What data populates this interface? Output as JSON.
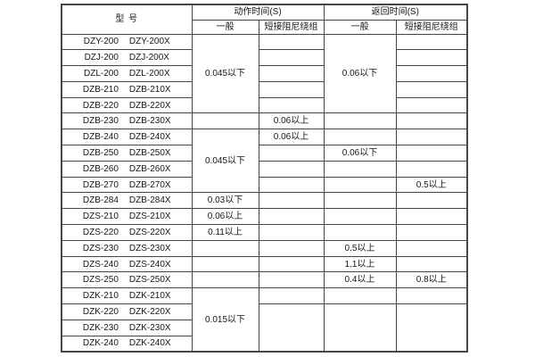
{
  "colors": {
    "background": "#ffffff",
    "border": "#454545",
    "text": "#161616"
  },
  "header": {
    "model": "型  号",
    "action": "动作时间(S)",
    "return": "返回时间(S)",
    "action_general": "一般",
    "action_damped": "短接阻尼绕组",
    "return_general": "一般",
    "return_damped": "短接阻尼绕组"
  },
  "table": {
    "columns": [
      "型号",
      "动作时间(S) 一般",
      "动作时间(S) 短接阻尼绕组",
      "返回时间(S) 一般",
      "返回时间(S) 短接阻尼绕组"
    ],
    "rows": [
      {
        "models": [
          "DZY-200",
          "DZY-200X"
        ],
        "cells": [
          {
            "text": "0.045以下",
            "rowspan": 5
          },
          {
            "text": ""
          },
          {
            "text": "0.06以下",
            "rowspan": 5
          },
          {
            "text": ""
          }
        ]
      },
      {
        "models": [
          "DZJ-200",
          "DZJ-200X"
        ],
        "cells": [
          null,
          {
            "text": ""
          },
          null,
          {
            "text": ""
          }
        ]
      },
      {
        "models": [
          "DZL-200",
          "DZL-200X"
        ],
        "cells": [
          null,
          {
            "text": ""
          },
          null,
          {
            "text": ""
          }
        ]
      },
      {
        "models": [
          "DZB-210",
          "DZB-210X"
        ],
        "cells": [
          null,
          {
            "text": ""
          },
          null,
          {
            "text": ""
          }
        ]
      },
      {
        "models": [
          "DZB-220",
          "DZB-220X"
        ],
        "cells": [
          null,
          {
            "text": ""
          },
          null,
          {
            "text": ""
          }
        ]
      },
      {
        "models": [
          "DZB-230",
          "DZB-230X"
        ],
        "cells": [
          {
            "text": ""
          },
          {
            "text": "0.06以上"
          },
          {
            "text": ""
          },
          {
            "text": ""
          }
        ]
      },
      {
        "models": [
          "DZB-240",
          "DZB-240X"
        ],
        "cells": [
          {
            "text": "0.045以下",
            "rowspan": 4
          },
          {
            "text": "0.06以上"
          },
          {
            "text": ""
          },
          {
            "text": ""
          }
        ]
      },
      {
        "models": [
          "DZB-250",
          "DZB-250X"
        ],
        "cells": [
          null,
          {
            "text": ""
          },
          {
            "text": "0.06以下"
          },
          {
            "text": ""
          }
        ]
      },
      {
        "models": [
          "DZB-260",
          "DZB-260X"
        ],
        "cells": [
          null,
          {
            "text": ""
          },
          {
            "text": ""
          },
          {
            "text": ""
          }
        ]
      },
      {
        "models": [
          "DZB-270",
          "DZB-270X"
        ],
        "cells": [
          null,
          {
            "text": ""
          },
          {
            "text": ""
          },
          {
            "text": "0.5以上"
          }
        ]
      },
      {
        "models": [
          "DZB-284",
          "DZB-284X"
        ],
        "cells": [
          {
            "text": "0.03以下"
          },
          {
            "text": ""
          },
          {
            "text": ""
          },
          {
            "text": ""
          }
        ]
      },
      {
        "models": [
          "DZS-210",
          "DZS-210X"
        ],
        "cells": [
          {
            "text": "0.06以上"
          },
          {
            "text": ""
          },
          {
            "text": ""
          },
          {
            "text": ""
          }
        ]
      },
      {
        "models": [
          "DZS-220",
          "DZS-220X"
        ],
        "cells": [
          {
            "text": "0.11以上"
          },
          {
            "text": ""
          },
          {
            "text": ""
          },
          {
            "text": ""
          }
        ]
      },
      {
        "models": [
          "DZS-230",
          "DZS-230X"
        ],
        "cells": [
          {
            "text": ""
          },
          {
            "text": ""
          },
          {
            "text": "0.5以上"
          },
          {
            "text": ""
          }
        ]
      },
      {
        "models": [
          "DZS-240",
          "DZS-240X"
        ],
        "cells": [
          {
            "text": ""
          },
          {
            "text": ""
          },
          {
            "text": "1.1以上"
          },
          {
            "text": ""
          }
        ]
      },
      {
        "models": [
          "DZS-250",
          "DZS-250X"
        ],
        "cells": [
          {
            "text": ""
          },
          {
            "text": ""
          },
          {
            "text": "0.4以上"
          },
          {
            "text": "0.8以上"
          }
        ]
      },
      {
        "models": [
          "DZK-210",
          "DZK-210X"
        ],
        "cells": [
          {
            "text": "0.015以下",
            "rowspan": 4
          },
          {
            "text": ""
          },
          {
            "text": ""
          },
          {
            "text": ""
          }
        ]
      },
      {
        "models": [
          "DZK-220",
          "DZK-220X"
        ],
        "cells": [
          null,
          {
            "text": "",
            "rowspan": 3
          },
          {
            "text": "",
            "rowspan": 3
          },
          {
            "text": "",
            "rowspan": 3
          }
        ]
      },
      {
        "models": [
          "DZK-230",
          "DZK-230X"
        ],
        "cells": [
          null,
          null,
          null,
          null
        ]
      },
      {
        "models": [
          "DZK-240",
          "DZK-240X"
        ],
        "cells": [
          null,
          null,
          null,
          null
        ]
      }
    ]
  }
}
